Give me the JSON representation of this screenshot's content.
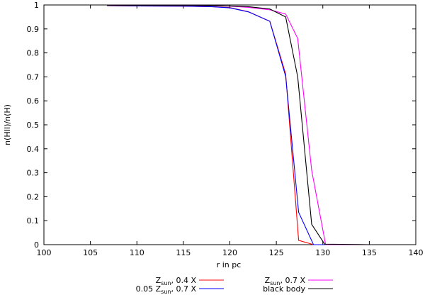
{
  "chart_data": {
    "type": "line",
    "xlabel": "r in pc",
    "ylabel": "n(HII)/n(H)",
    "xlim": [
      100,
      140
    ],
    "ylim": [
      0,
      1
    ],
    "xticks": [
      100,
      105,
      110,
      115,
      120,
      125,
      130,
      135,
      140
    ],
    "yticks": [
      0,
      0.1,
      0.2,
      0.3,
      0.4,
      0.5,
      0.6,
      0.7,
      0.8,
      0.9,
      1
    ],
    "ytick_labels": [
      "0",
      "0.1",
      "0.2",
      "0.3",
      "0.4",
      "0.5",
      "0.6",
      "0.7",
      "0.8",
      "0.9",
      "1"
    ],
    "grid": false,
    "legend_position": "bottom",
    "series": [
      {
        "name_main": "Z",
        "name_sub": "sun",
        "name_rest": ", 0.4 X",
        "color": "#ff0000",
        "x": [
          106.8,
          110,
          115,
          118,
          120,
          122,
          124.3,
          126.0,
          127.4,
          129.0,
          130.5,
          135,
          140
        ],
        "y": [
          0.997,
          0.996,
          0.995,
          0.993,
          0.989,
          0.972,
          0.932,
          0.712,
          0.018,
          0.0,
          0.0,
          0.0,
          0.0
        ]
      },
      {
        "name_main": "0.05 Z",
        "name_sub": "sun",
        "name_rest": ", 0.7 X",
        "color": "#0000ff",
        "x": [
          106.8,
          110,
          115,
          118,
          120,
          122,
          124.3,
          126.0,
          127.4,
          129.0,
          130.5,
          135,
          140
        ],
        "y": [
          0.997,
          0.996,
          0.995,
          0.993,
          0.988,
          0.971,
          0.932,
          0.702,
          0.135,
          0.0,
          0.0,
          0.0,
          0.0
        ]
      },
      {
        "name_main": "Z",
        "name_sub": "sun",
        "name_rest": ", 0.7 X",
        "color": "#ff00ff",
        "x": [
          106.8,
          110,
          115,
          118,
          120,
          122,
          124.3,
          126.0,
          127.3,
          128.8,
          130.3,
          135,
          140
        ],
        "y": [
          0.998,
          0.998,
          0.998,
          0.997,
          0.995,
          0.99,
          0.98,
          0.962,
          0.86,
          0.31,
          0.0,
          0.0,
          0.0
        ]
      },
      {
        "name_main": "black body",
        "name_sub": "",
        "name_rest": "",
        "color": "#000000",
        "x": [
          106.8,
          110,
          115,
          118,
          120,
          122,
          124.3,
          126.0,
          127.3,
          128.8,
          130.2,
          135,
          140
        ],
        "y": [
          0.998,
          0.998,
          0.998,
          0.997,
          0.996,
          0.993,
          0.983,
          0.95,
          0.7,
          0.085,
          0.002,
          0.0,
          0.0
        ]
      }
    ]
  }
}
